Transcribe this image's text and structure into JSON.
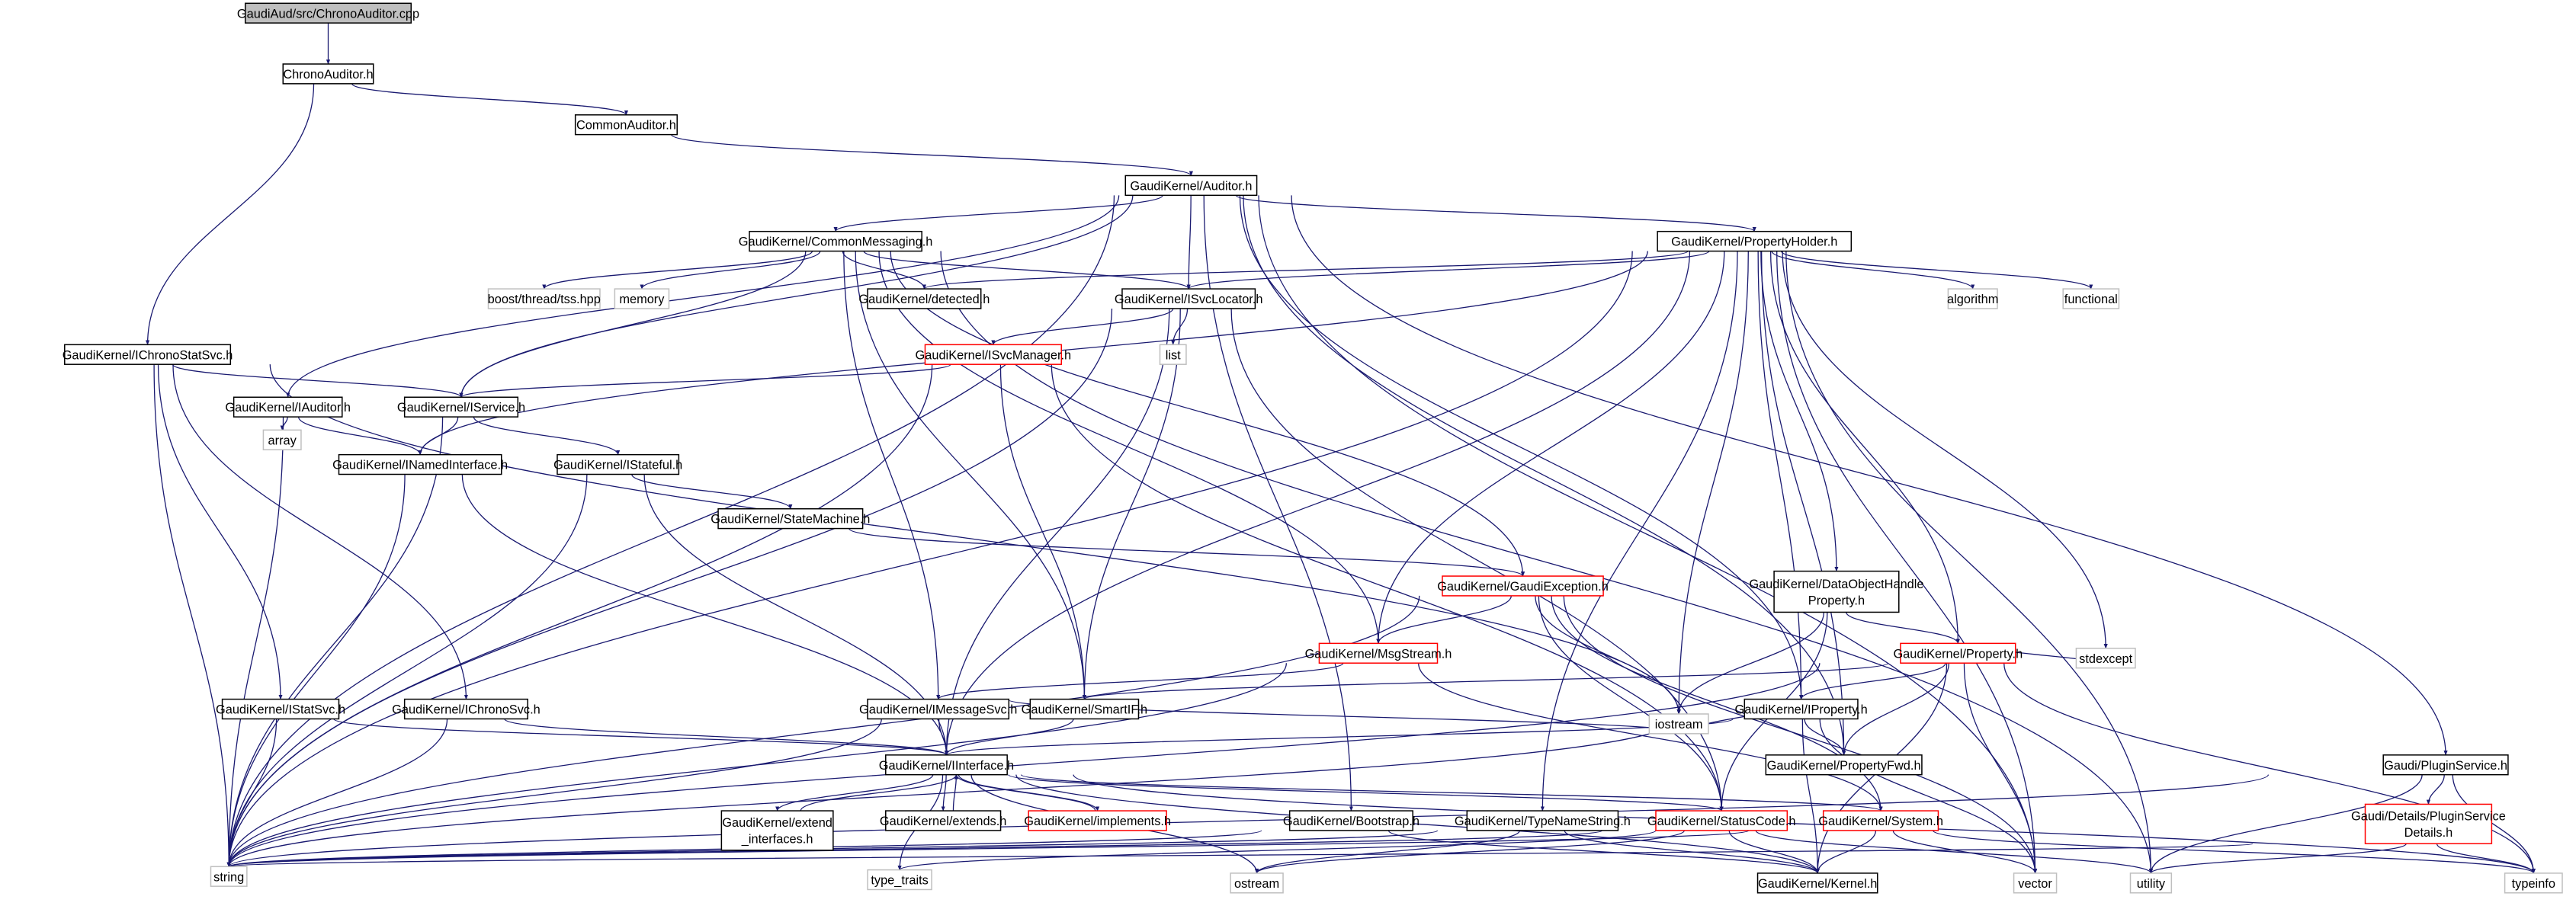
{
  "colors": {
    "edge": "#191970",
    "documented_border": "#000000",
    "external_border": "#bfbfbf",
    "truncated_border": "#ff0000",
    "root_fill": "#bfbfbf"
  },
  "nodes": [
    {
      "id": "cpp",
      "lines": [
        "GaudiAud/src/ChronoAuditor.cpp"
      ],
      "kind": "root"
    },
    {
      "id": "chronoaud",
      "lines": [
        "ChronoAuditor.h"
      ],
      "kind": "doc"
    },
    {
      "id": "commonaud",
      "lines": [
        "CommonAuditor.h"
      ],
      "kind": "doc"
    },
    {
      "id": "auditor",
      "lines": [
        "GaudiKernel/Auditor.h"
      ],
      "kind": "doc"
    },
    {
      "id": "commsg",
      "lines": [
        "GaudiKernel/CommonMessaging.h"
      ],
      "kind": "doc"
    },
    {
      "id": "propholder",
      "lines": [
        "GaudiKernel/PropertyHolder.h"
      ],
      "kind": "doc"
    },
    {
      "id": "boosttss",
      "lines": [
        "boost/thread/tss.hpp"
      ],
      "kind": "ext"
    },
    {
      "id": "memory",
      "lines": [
        "memory"
      ],
      "kind": "ext"
    },
    {
      "id": "detected",
      "lines": [
        "GaudiKernel/detected.h"
      ],
      "kind": "doc"
    },
    {
      "id": "isvcloc",
      "lines": [
        "GaudiKernel/ISvcLocator.h"
      ],
      "kind": "doc"
    },
    {
      "id": "algorithm",
      "lines": [
        "algorithm"
      ],
      "kind": "ext"
    },
    {
      "id": "functional",
      "lines": [
        "functional"
      ],
      "kind": "ext"
    },
    {
      "id": "ichronostat",
      "lines": [
        "GaudiKernel/IChronoStatSvc.h"
      ],
      "kind": "doc"
    },
    {
      "id": "isvcmgr",
      "lines": [
        "GaudiKernel/ISvcManager.h"
      ],
      "kind": "red"
    },
    {
      "id": "list",
      "lines": [
        "list"
      ],
      "kind": "ext"
    },
    {
      "id": "iauditor",
      "lines": [
        "GaudiKernel/IAuditor.h"
      ],
      "kind": "doc"
    },
    {
      "id": "iservice",
      "lines": [
        "GaudiKernel/IService.h"
      ],
      "kind": "doc"
    },
    {
      "id": "array",
      "lines": [
        "array"
      ],
      "kind": "ext"
    },
    {
      "id": "inamed",
      "lines": [
        "GaudiKernel/INamedInterface.h"
      ],
      "kind": "doc"
    },
    {
      "id": "istateful",
      "lines": [
        "GaudiKernel/IStateful.h"
      ],
      "kind": "doc"
    },
    {
      "id": "statemachine",
      "lines": [
        "GaudiKernel/StateMachine.h"
      ],
      "kind": "doc"
    },
    {
      "id": "gaudiexc",
      "lines": [
        "GaudiKernel/GaudiException.h"
      ],
      "kind": "red"
    },
    {
      "id": "dohprop",
      "lines": [
        "GaudiKernel/DataObjectHandle",
        "Property.h"
      ],
      "kind": "doc"
    },
    {
      "id": "msgstream",
      "lines": [
        "GaudiKernel/MsgStream.h"
      ],
      "kind": "red"
    },
    {
      "id": "property",
      "lines": [
        "GaudiKernel/Property.h"
      ],
      "kind": "red"
    },
    {
      "id": "stdexcept",
      "lines": [
        "stdexcept"
      ],
      "kind": "ext"
    },
    {
      "id": "istatsvc",
      "lines": [
        "GaudiKernel/IStatSvc.h"
      ],
      "kind": "doc"
    },
    {
      "id": "ichronosvc",
      "lines": [
        "GaudiKernel/IChronoSvc.h"
      ],
      "kind": "doc"
    },
    {
      "id": "imsgsvc",
      "lines": [
        "GaudiKernel/IMessageSvc.h"
      ],
      "kind": "doc"
    },
    {
      "id": "smartif",
      "lines": [
        "GaudiKernel/SmartIF.h"
      ],
      "kind": "doc"
    },
    {
      "id": "iproperty",
      "lines": [
        "GaudiKernel/IProperty.h"
      ],
      "kind": "doc"
    },
    {
      "id": "iostream",
      "lines": [
        "iostream"
      ],
      "kind": "ext"
    },
    {
      "id": "propfwd",
      "lines": [
        "GaudiKernel/PropertyFwd.h"
      ],
      "kind": "doc"
    },
    {
      "id": "iinterface",
      "lines": [
        "GaudiKernel/IInterface.h"
      ],
      "kind": "doc"
    },
    {
      "id": "pluginsvc",
      "lines": [
        "Gaudi/PluginService.h"
      ],
      "kind": "doc"
    },
    {
      "id": "extendif",
      "lines": [
        "GaudiKernel/extend",
        "_interfaces.h"
      ],
      "kind": "doc"
    },
    {
      "id": "extends",
      "lines": [
        "GaudiKernel/extends.h"
      ],
      "kind": "doc"
    },
    {
      "id": "implements",
      "lines": [
        "GaudiKernel/implements.h"
      ],
      "kind": "red"
    },
    {
      "id": "bootstrap",
      "lines": [
        "GaudiKernel/Bootstrap.h"
      ],
      "kind": "doc"
    },
    {
      "id": "typename",
      "lines": [
        "GaudiKernel/TypeNameString.h"
      ],
      "kind": "doc"
    },
    {
      "id": "statuscode",
      "lines": [
        "GaudiKernel/StatusCode.h"
      ],
      "kind": "red"
    },
    {
      "id": "system",
      "lines": [
        "GaudiKernel/System.h"
      ],
      "kind": "red"
    },
    {
      "id": "plugindetails",
      "lines": [
        "Gaudi/Details/PluginService",
        "Details.h"
      ],
      "kind": "red"
    },
    {
      "id": "string",
      "lines": [
        "string"
      ],
      "kind": "ext"
    },
    {
      "id": "typetraits",
      "lines": [
        "type_traits"
      ],
      "kind": "ext"
    },
    {
      "id": "ostream",
      "lines": [
        "ostream"
      ],
      "kind": "ext"
    },
    {
      "id": "kernel",
      "lines": [
        "GaudiKernel/Kernel.h"
      ],
      "kind": "doc"
    },
    {
      "id": "vector",
      "lines": [
        "vector"
      ],
      "kind": "ext"
    },
    {
      "id": "utility",
      "lines": [
        "utility"
      ],
      "kind": "ext"
    },
    {
      "id": "typeinfo",
      "lines": [
        "typeinfo"
      ],
      "kind": "ext"
    }
  ],
  "edges": [
    [
      "cpp",
      "chronoaud"
    ],
    [
      "chronoaud",
      "commonaud"
    ],
    [
      "chronoaud",
      "ichronostat"
    ],
    [
      "commonaud",
      "auditor"
    ],
    [
      "auditor",
      "commsg"
    ],
    [
      "auditor",
      "propholder"
    ],
    [
      "auditor",
      "isvcloc"
    ],
    [
      "auditor",
      "iauditor"
    ],
    [
      "auditor",
      "iservice"
    ],
    [
      "auditor",
      "string"
    ],
    [
      "auditor",
      "vector"
    ],
    [
      "auditor",
      "iproperty"
    ],
    [
      "auditor",
      "propfwd"
    ],
    [
      "auditor",
      "pluginsvc"
    ],
    [
      "commsg",
      "boosttss"
    ],
    [
      "commsg",
      "memory"
    ],
    [
      "commsg",
      "detected"
    ],
    [
      "commsg",
      "isvcloc"
    ],
    [
      "commsg",
      "iservice"
    ],
    [
      "commsg",
      "imsgsvc"
    ],
    [
      "commsg",
      "msgstream"
    ],
    [
      "commsg",
      "smartif"
    ],
    [
      "commsg",
      "gaudiexc"
    ],
    [
      "commsg",
      "utility"
    ],
    [
      "propholder",
      "detected"
    ],
    [
      "propholder",
      "isvcloc"
    ],
    [
      "propholder",
      "algorithm"
    ],
    [
      "propholder",
      "functional"
    ],
    [
      "propholder",
      "stdexcept"
    ],
    [
      "propholder",
      "utility"
    ],
    [
      "propholder",
      "vector"
    ],
    [
      "propholder",
      "iostream"
    ],
    [
      "propholder",
      "string"
    ],
    [
      "propholder",
      "iproperty"
    ],
    [
      "propholder",
      "property"
    ],
    [
      "propholder",
      "dohprop"
    ],
    [
      "propholder",
      "msgstream"
    ],
    [
      "propholder",
      "inamed"
    ],
    [
      "propholder",
      "iinterface"
    ],
    [
      "propholder",
      "propfwd"
    ],
    [
      "isvcloc",
      "isvcmgr"
    ],
    [
      "isvcloc",
      "list"
    ],
    [
      "isvcloc",
      "string"
    ],
    [
      "isvcloc",
      "iinterface"
    ],
    [
      "isvcloc",
      "smartif"
    ],
    [
      "isvcloc",
      "statuscode"
    ],
    [
      "ichronostat",
      "iservice"
    ],
    [
      "ichronostat",
      "istatsvc"
    ],
    [
      "ichronostat",
      "ichronosvc"
    ],
    [
      "ichronostat",
      "string"
    ],
    [
      "ichronostat",
      "iostream"
    ],
    [
      "isvcmgr",
      "iservice"
    ],
    [
      "isvcmgr",
      "string"
    ],
    [
      "isvcmgr",
      "smartif"
    ],
    [
      "isvcmgr",
      "statuscode"
    ],
    [
      "iauditor",
      "inamed"
    ],
    [
      "iauditor",
      "array"
    ],
    [
      "iauditor",
      "string"
    ],
    [
      "iservice",
      "inamed"
    ],
    [
      "iservice",
      "istateful"
    ],
    [
      "iservice",
      "string"
    ],
    [
      "inamed",
      "iinterface"
    ],
    [
      "inamed",
      "string"
    ],
    [
      "istateful",
      "statemachine"
    ],
    [
      "istateful",
      "iinterface"
    ],
    [
      "istateful",
      "string"
    ],
    [
      "statemachine",
      "gaudiexc"
    ],
    [
      "gaudiexc",
      "msgstream"
    ],
    [
      "gaudiexc",
      "iostream"
    ],
    [
      "gaudiexc",
      "string"
    ],
    [
      "gaudiexc",
      "statuscode"
    ],
    [
      "gaudiexc",
      "system"
    ],
    [
      "gaudiexc",
      "vector"
    ],
    [
      "dohprop",
      "property"
    ],
    [
      "dohprop",
      "iostream"
    ],
    [
      "dohprop",
      "statuscode"
    ],
    [
      "msgstream",
      "imsgsvc"
    ],
    [
      "msgstream",
      "string"
    ],
    [
      "msgstream",
      "system"
    ],
    [
      "property",
      "iproperty"
    ],
    [
      "property",
      "propfwd"
    ],
    [
      "property",
      "smartif"
    ],
    [
      "property",
      "stdexcept"
    ],
    [
      "property",
      "typeinfo"
    ],
    [
      "property",
      "string"
    ],
    [
      "property",
      "vector"
    ],
    [
      "property",
      "kernel"
    ],
    [
      "istatsvc",
      "iinterface"
    ],
    [
      "istatsvc",
      "string"
    ],
    [
      "ichronosvc",
      "iinterface"
    ],
    [
      "ichronosvc",
      "string"
    ],
    [
      "imsgsvc",
      "iinterface"
    ],
    [
      "imsgsvc",
      "string"
    ],
    [
      "imsgsvc",
      "iostream"
    ],
    [
      "smartif",
      "iinterface"
    ],
    [
      "iproperty",
      "iinterface"
    ],
    [
      "iproperty",
      "propfwd"
    ],
    [
      "iproperty",
      "string"
    ],
    [
      "iproperty",
      "vector"
    ],
    [
      "iproperty",
      "iostream"
    ],
    [
      "iproperty",
      "kernel"
    ],
    [
      "iinterface",
      "extendif"
    ],
    [
      "iinterface",
      "extends"
    ],
    [
      "iinterface",
      "implements"
    ],
    [
      "iinterface",
      "system"
    ],
    [
      "iinterface",
      "statuscode"
    ],
    [
      "iinterface",
      "kernel"
    ],
    [
      "iinterface",
      "typetraits"
    ],
    [
      "iinterface",
      "ostream"
    ],
    [
      "iinterface",
      "typeinfo"
    ],
    [
      "extendif",
      "iinterface"
    ],
    [
      "extends",
      "iinterface"
    ],
    [
      "implements",
      "iinterface"
    ],
    [
      "bootstrap",
      "string"
    ],
    [
      "bootstrap",
      "kernel"
    ],
    [
      "typename",
      "string"
    ],
    [
      "typename",
      "ostream"
    ],
    [
      "typename",
      "kernel"
    ],
    [
      "statuscode",
      "kernel"
    ],
    [
      "statuscode",
      "string"
    ],
    [
      "statuscode",
      "ostream"
    ],
    [
      "statuscode",
      "typetraits"
    ],
    [
      "statuscode",
      "utility"
    ],
    [
      "system",
      "kernel"
    ],
    [
      "system",
      "string"
    ],
    [
      "system",
      "vector"
    ],
    [
      "system",
      "typeinfo"
    ],
    [
      "pluginsvc",
      "plugindetails"
    ],
    [
      "pluginsvc",
      "typeinfo"
    ],
    [
      "pluginsvc",
      "utility"
    ],
    [
      "pluginsvc",
      "string"
    ],
    [
      "plugindetails",
      "string"
    ],
    [
      "plugindetails",
      "typeinfo"
    ],
    [
      "plugindetails",
      "utility"
    ],
    [
      "auditor",
      "bootstrap"
    ],
    [
      "propholder",
      "typename"
    ]
  ]
}
